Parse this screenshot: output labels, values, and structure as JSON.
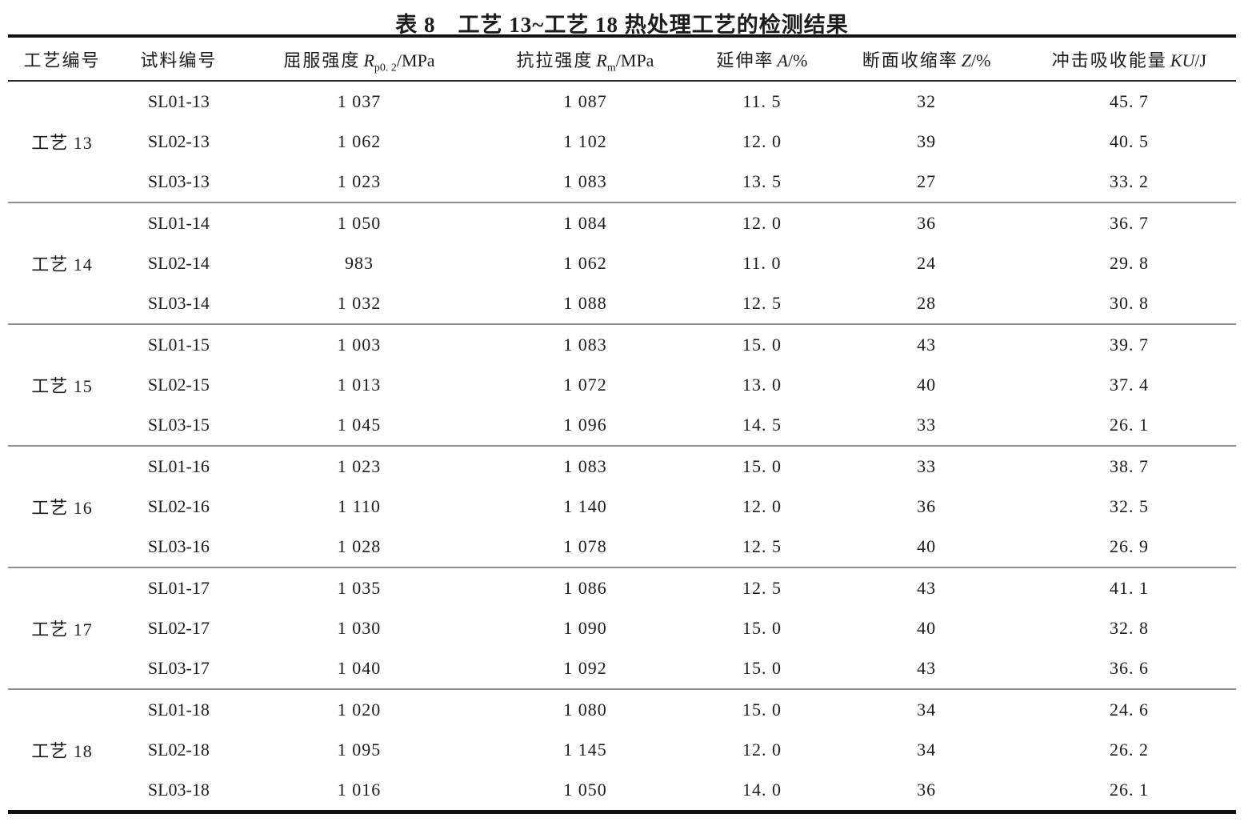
{
  "page": {
    "background": "#ffffff",
    "text_color": "#1c1c1c",
    "thick_rule_color": "#121212",
    "header_rule_color": "#2b2b2b",
    "group_rule_color": "#8f8f8f"
  },
  "title": "表 8　工艺 13~工艺 18 热处理工艺的检测结果",
  "table": {
    "headers": [
      {
        "prefix": "工艺编号",
        "sym": "",
        "sub": "",
        "unit": ""
      },
      {
        "prefix": "试料编号",
        "sym": "",
        "sub": "",
        "unit": ""
      },
      {
        "prefix": "屈服强度",
        "sym": "R",
        "sub": "p0. 2",
        "unit": "/MPa"
      },
      {
        "prefix": "抗拉强度",
        "sym": "R",
        "sub": "m",
        "unit": "/MPa"
      },
      {
        "prefix": "延伸率",
        "sym": "A",
        "sub": "",
        "unit": "/%"
      },
      {
        "prefix": "断面收缩率",
        "sym": "Z",
        "sub": "",
        "unit": "/%"
      },
      {
        "prefix": "冲击吸收能量",
        "sym": "KU",
        "sub": "",
        "unit": "/J"
      }
    ],
    "groups": [
      {
        "process": "工艺 13",
        "rows": [
          {
            "sample": "SL01-13",
            "yield": "1 037",
            "tensile": "1 087",
            "elongation": "11. 5",
            "reduction": "32",
            "impact": "45. 7"
          },
          {
            "sample": "SL02-13",
            "yield": "1 062",
            "tensile": "1 102",
            "elongation": "12. 0",
            "reduction": "39",
            "impact": "40. 5"
          },
          {
            "sample": "SL03-13",
            "yield": "1 023",
            "tensile": "1 083",
            "elongation": "13. 5",
            "reduction": "27",
            "impact": "33. 2"
          }
        ]
      },
      {
        "process": "工艺 14",
        "rows": [
          {
            "sample": "SL01-14",
            "yield": "1 050",
            "tensile": "1 084",
            "elongation": "12. 0",
            "reduction": "36",
            "impact": "36. 7"
          },
          {
            "sample": "SL02-14",
            "yield": "983",
            "tensile": "1 062",
            "elongation": "11. 0",
            "reduction": "24",
            "impact": "29. 8"
          },
          {
            "sample": "SL03-14",
            "yield": "1 032",
            "tensile": "1 088",
            "elongation": "12. 5",
            "reduction": "28",
            "impact": "30. 8"
          }
        ]
      },
      {
        "process": "工艺 15",
        "rows": [
          {
            "sample": "SL01-15",
            "yield": "1 003",
            "tensile": "1 083",
            "elongation": "15. 0",
            "reduction": "43",
            "impact": "39. 7"
          },
          {
            "sample": "SL02-15",
            "yield": "1 013",
            "tensile": "1 072",
            "elongation": "13. 0",
            "reduction": "40",
            "impact": "37. 4"
          },
          {
            "sample": "SL03-15",
            "yield": "1 045",
            "tensile": "1 096",
            "elongation": "14. 5",
            "reduction": "33",
            "impact": "26. 1"
          }
        ]
      },
      {
        "process": "工艺 16",
        "rows": [
          {
            "sample": "SL01-16",
            "yield": "1 023",
            "tensile": "1 083",
            "elongation": "15. 0",
            "reduction": "33",
            "impact": "38. 7"
          },
          {
            "sample": "SL02-16",
            "yield": "1 110",
            "tensile": "1 140",
            "elongation": "12. 0",
            "reduction": "36",
            "impact": "32. 5"
          },
          {
            "sample": "SL03-16",
            "yield": "1 028",
            "tensile": "1 078",
            "elongation": "12. 5",
            "reduction": "40",
            "impact": "26. 9"
          }
        ]
      },
      {
        "process": "工艺 17",
        "rows": [
          {
            "sample": "SL01-17",
            "yield": "1 035",
            "tensile": "1 086",
            "elongation": "12. 5",
            "reduction": "43",
            "impact": "41. 1"
          },
          {
            "sample": "SL02-17",
            "yield": "1 030",
            "tensile": "1 090",
            "elongation": "15. 0",
            "reduction": "40",
            "impact": "32. 8"
          },
          {
            "sample": "SL03-17",
            "yield": "1 040",
            "tensile": "1 092",
            "elongation": "15. 0",
            "reduction": "43",
            "impact": "36. 6"
          }
        ]
      },
      {
        "process": "工艺 18",
        "rows": [
          {
            "sample": "SL01-18",
            "yield": "1 020",
            "tensile": "1 080",
            "elongation": "15. 0",
            "reduction": "34",
            "impact": "24. 6"
          },
          {
            "sample": "SL02-18",
            "yield": "1 095",
            "tensile": "1 145",
            "elongation": "12. 0",
            "reduction": "34",
            "impact": "26. 2"
          },
          {
            "sample": "SL03-18",
            "yield": "1 016",
            "tensile": "1 050",
            "elongation": "14. 0",
            "reduction": "36",
            "impact": "26. 1"
          }
        ]
      }
    ]
  }
}
